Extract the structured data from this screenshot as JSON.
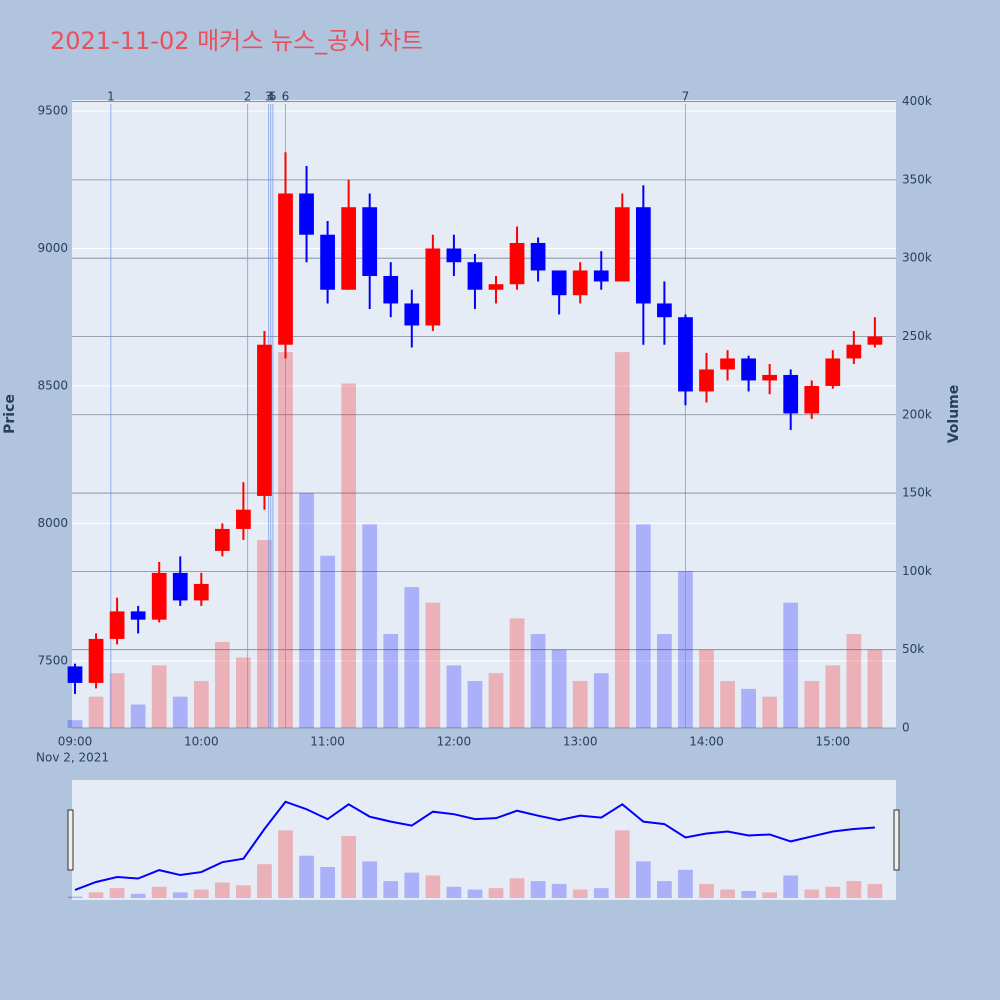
{
  "chart_data": {
    "type": "candlestick",
    "title": "2021-11-02 매커스 뉴스_공시 차트",
    "x": [
      "09:00",
      "09:10",
      "09:20",
      "09:30",
      "09:40",
      "09:50",
      "10:00",
      "10:10",
      "10:20",
      "10:30",
      "10:40",
      "10:50",
      "11:00",
      "11:10",
      "11:20",
      "11:30",
      "11:40",
      "11:50",
      "12:00",
      "12:10",
      "12:20",
      "12:30",
      "12:40",
      "12:50",
      "13:00",
      "13:10",
      "13:20",
      "13:30",
      "13:40",
      "13:50",
      "14:00",
      "14:10",
      "14:20",
      "14:30",
      "14:40",
      "14:50",
      "15:00",
      "15:10",
      "15:20"
    ],
    "open": [
      7480,
      7420,
      7580,
      7680,
      7650,
      7820,
      7720,
      7900,
      7980,
      8100,
      8650,
      9200,
      9050,
      8850,
      9150,
      8900,
      8800,
      8720,
      9000,
      8950,
      8850,
      8870,
      9020,
      8920,
      8830,
      8920,
      8880,
      9150,
      8800,
      8750,
      8480,
      8560,
      8600,
      8520,
      8540,
      8400,
      8500,
      8600,
      8650
    ],
    "high": [
      7490,
      7600,
      7730,
      7700,
      7860,
      7880,
      7820,
      8000,
      8150,
      8700,
      9350,
      9300,
      9100,
      9250,
      9200,
      8950,
      8850,
      9050,
      9050,
      8980,
      8900,
      9080,
      9040,
      8920,
      8950,
      8990,
      9200,
      9230,
      8880,
      8760,
      8620,
      8630,
      8610,
      8580,
      8560,
      8520,
      8630,
      8700,
      8750
    ],
    "low": [
      7380,
      7400,
      7560,
      7600,
      7640,
      7700,
      7700,
      7880,
      7940,
      8050,
      8600,
      8950,
      8800,
      8850,
      8780,
      8750,
      8640,
      8700,
      8900,
      8780,
      8800,
      8850,
      8880,
      8760,
      8800,
      8850,
      8880,
      8650,
      8650,
      8430,
      8440,
      8520,
      8480,
      8470,
      8340,
      8380,
      8490,
      8580,
      8640
    ],
    "close": [
      7420,
      7580,
      7680,
      7650,
      7820,
      7720,
      7780,
      7980,
      8050,
      8650,
      9200,
      9050,
      8850,
      9150,
      8900,
      8800,
      8720,
      9000,
      8950,
      8850,
      8870,
      9020,
      8920,
      8830,
      8920,
      8880,
      9150,
      8800,
      8750,
      8480,
      8560,
      8600,
      8520,
      8540,
      8400,
      8500,
      8600,
      8650,
      8680
    ],
    "volume": [
      5000,
      20000,
      35000,
      15000,
      40000,
      20000,
      30000,
      55000,
      45000,
      120000,
      240000,
      150000,
      110000,
      220000,
      130000,
      60000,
      90000,
      80000,
      40000,
      30000,
      35000,
      70000,
      60000,
      50000,
      30000,
      35000,
      240000,
      130000,
      60000,
      100000,
      50000,
      30000,
      25000,
      20000,
      80000,
      30000,
      40000,
      60000,
      50000
    ],
    "increasing_color": "#ff0000",
    "decreasing_color": "#0000ff",
    "xticks": [
      "09:00",
      "10:00",
      "11:00",
      "12:00",
      "13:00",
      "14:00",
      "15:00"
    ],
    "x_date_label": "Nov 2, 2021",
    "y_label": "Price",
    "y2_label": "Volume",
    "ylim": [
      7256,
      9540
    ],
    "yticks": [
      7500,
      8000,
      8500,
      9000,
      9500
    ],
    "y2lim": [
      0,
      401000
    ],
    "y2ticks": [
      0,
      {
        "value": 50000,
        "label": "50k"
      },
      {
        "value": 100000,
        "label": "100k"
      },
      {
        "value": 150000,
        "label": "150k"
      },
      {
        "value": 200000,
        "label": "200k"
      },
      {
        "value": 250000,
        "label": "250k"
      },
      {
        "value": 300000,
        "label": "300k"
      },
      {
        "value": 350000,
        "label": "350k"
      },
      {
        "value": 400000,
        "label": "400k"
      }
    ],
    "annotations": [
      {
        "x": "09:17",
        "label": "1"
      },
      {
        "x": "10:22",
        "label": "2"
      },
      {
        "x": "10:32",
        "label": "3"
      },
      {
        "x": "10:33",
        "label": "4"
      },
      {
        "x": "10:34",
        "label": "5"
      },
      {
        "x": "10:40",
        "label": "6"
      },
      {
        "x": "13:50",
        "label": "7"
      }
    ]
  }
}
